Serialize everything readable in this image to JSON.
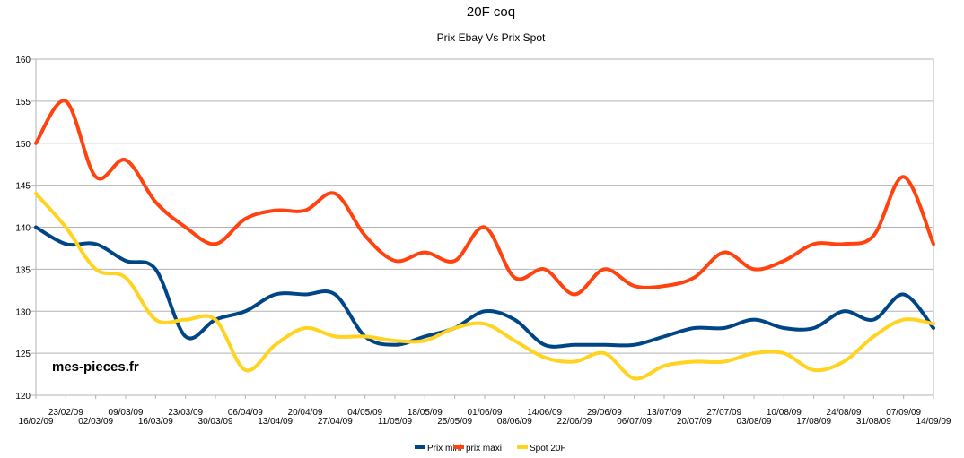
{
  "chart_data": {
    "type": "line",
    "title": "20F coq",
    "subtitle": "Prix Ebay Vs Prix Spot",
    "annotation": "mes-pieces.fr",
    "xlabel": "",
    "ylabel": "",
    "ylim": [
      120,
      160
    ],
    "yticks": [
      120,
      125,
      130,
      135,
      140,
      145,
      150,
      155,
      160
    ],
    "grid": true,
    "legend_position": "bottom-center",
    "categories": [
      "16/02/09",
      "23/02/09",
      "02/03/09",
      "09/03/09",
      "16/03/09",
      "23/03/09",
      "30/03/09",
      "06/04/09",
      "13/04/09",
      "20/04/09",
      "27/04/09",
      "04/05/09",
      "11/05/09",
      "18/05/09",
      "25/05/09",
      "01/06/09",
      "08/06/09",
      "14/06/09",
      "22/06/09",
      "29/06/09",
      "06/07/09",
      "13/07/09",
      "20/07/09",
      "27/07/09",
      "03/08/09",
      "10/08/09",
      "17/08/09",
      "24/08/09",
      "31/08/09",
      "07/09/09",
      "14/09/09"
    ],
    "series": [
      {
        "name": "Prix mini",
        "color": "#004586",
        "values": [
          140,
          138,
          138,
          136,
          135,
          127,
          129,
          130,
          132,
          132,
          132,
          127,
          126,
          127,
          128,
          130,
          129,
          126,
          126,
          126,
          126,
          127,
          128,
          128,
          129,
          128,
          128,
          130,
          129,
          132,
          128
        ]
      },
      {
        "name": "prix maxi",
        "color": "#ff420e",
        "values": [
          150,
          155,
          146,
          148,
          143,
          140,
          138,
          141,
          142,
          142,
          144,
          139,
          136,
          137,
          136,
          140,
          134,
          135,
          132,
          135,
          133,
          133,
          134,
          137,
          135,
          136,
          138,
          138,
          139,
          146,
          138
        ]
      },
      {
        "name": "Spot 20F",
        "color": "#ffd320",
        "values": [
          144,
          140,
          135,
          134,
          129,
          129,
          129,
          123,
          126,
          128,
          127,
          127,
          126.5,
          126.5,
          128,
          128.5,
          126.5,
          124.5,
          124,
          125,
          122,
          123.5,
          124,
          124,
          125,
          125,
          123,
          124,
          127,
          129,
          128.5
        ]
      }
    ]
  }
}
